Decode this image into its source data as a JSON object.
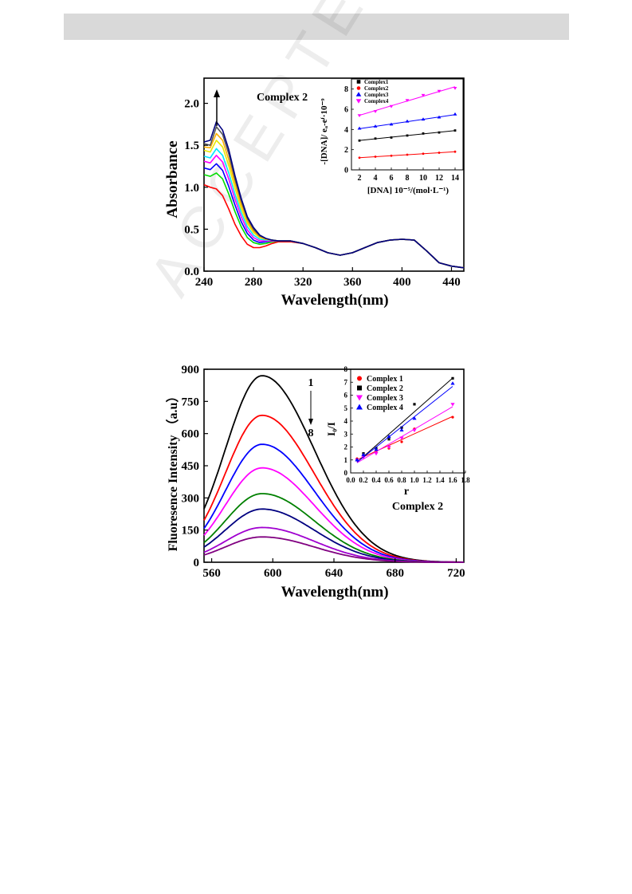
{
  "watermark_text": "ACCEPTED MANUSCRIPT",
  "chart_data": [
    {
      "type": "line",
      "panel": "top-uv-vis",
      "title": "Complex 2",
      "xlabel": "Wavelength(nm)",
      "ylabel": "Absorbance",
      "xlim": [
        240,
        450
      ],
      "ylim": [
        0.0,
        2.3
      ],
      "x_ticks": [
        "240",
        "280",
        "320",
        "360",
        "400",
        "440"
      ],
      "y_ticks": [
        "0.0",
        "0.5",
        "1.0",
        "1.5",
        "2.0"
      ],
      "grid": false,
      "arrow": "up",
      "colors": [
        "#ff0000",
        "#00dd00",
        "#0000ff",
        "#ff00ff",
        "#00e5ff",
        "#e8e800",
        "#ffb000",
        "#555555",
        "#000080"
      ],
      "curves_x": [
        240,
        245,
        250,
        255,
        260,
        265,
        270,
        275,
        280,
        285,
        290,
        295,
        300,
        310,
        320,
        330,
        340,
        350,
        360,
        370,
        380,
        390,
        400,
        410,
        420,
        430,
        440,
        450
      ],
      "series": [
        {
          "values": [
            1.03,
            1.0,
            0.98,
            0.9,
            0.74,
            0.56,
            0.42,
            0.32,
            0.28,
            0.28,
            0.3,
            0.33,
            0.35,
            0.35,
            0.33,
            0.28,
            0.22,
            0.19,
            0.22,
            0.28,
            0.34,
            0.37,
            0.38,
            0.37,
            0.24,
            0.1,
            0.06,
            0.04
          ]
        },
        {
          "values": [
            1.15,
            1.13,
            1.17,
            1.1,
            0.92,
            0.71,
            0.53,
            0.4,
            0.34,
            0.32,
            0.33,
            0.35,
            0.36,
            0.36,
            0.33,
            0.28,
            0.22,
            0.19,
            0.22,
            0.28,
            0.34,
            0.37,
            0.38,
            0.37,
            0.24,
            0.1,
            0.06,
            0.04
          ]
        },
        {
          "values": [
            1.23,
            1.21,
            1.28,
            1.2,
            1.01,
            0.79,
            0.59,
            0.45,
            0.37,
            0.34,
            0.35,
            0.36,
            0.36,
            0.36,
            0.33,
            0.28,
            0.22,
            0.19,
            0.22,
            0.28,
            0.34,
            0.37,
            0.38,
            0.37,
            0.24,
            0.1,
            0.06,
            0.04
          ]
        },
        {
          "values": [
            1.31,
            1.29,
            1.38,
            1.3,
            1.1,
            0.86,
            0.65,
            0.49,
            0.4,
            0.36,
            0.36,
            0.36,
            0.36,
            0.36,
            0.33,
            0.28,
            0.22,
            0.19,
            0.22,
            0.28,
            0.34,
            0.37,
            0.38,
            0.37,
            0.24,
            0.1,
            0.06,
            0.04
          ]
        },
        {
          "values": [
            1.37,
            1.35,
            1.46,
            1.38,
            1.17,
            0.92,
            0.7,
            0.53,
            0.43,
            0.38,
            0.37,
            0.37,
            0.36,
            0.36,
            0.33,
            0.28,
            0.22,
            0.19,
            0.22,
            0.28,
            0.34,
            0.37,
            0.38,
            0.37,
            0.24,
            0.1,
            0.06,
            0.04
          ]
        },
        {
          "values": [
            1.44,
            1.42,
            1.56,
            1.48,
            1.26,
            0.99,
            0.75,
            0.57,
            0.46,
            0.4,
            0.38,
            0.37,
            0.36,
            0.36,
            0.33,
            0.28,
            0.22,
            0.19,
            0.22,
            0.28,
            0.34,
            0.37,
            0.38,
            0.37,
            0.24,
            0.1,
            0.06,
            0.04
          ]
        },
        {
          "values": [
            1.48,
            1.47,
            1.64,
            1.56,
            1.33,
            1.05,
            0.8,
            0.6,
            0.48,
            0.41,
            0.38,
            0.37,
            0.36,
            0.36,
            0.33,
            0.28,
            0.22,
            0.19,
            0.22,
            0.28,
            0.34,
            0.37,
            0.38,
            0.37,
            0.24,
            0.1,
            0.06,
            0.04
          ]
        },
        {
          "values": [
            1.52,
            1.5,
            1.72,
            1.63,
            1.4,
            1.1,
            0.84,
            0.63,
            0.5,
            0.42,
            0.39,
            0.37,
            0.36,
            0.36,
            0.33,
            0.28,
            0.22,
            0.19,
            0.22,
            0.28,
            0.34,
            0.37,
            0.38,
            0.37,
            0.24,
            0.1,
            0.06,
            0.04
          ]
        },
        {
          "values": [
            1.54,
            1.56,
            1.78,
            1.68,
            1.45,
            1.14,
            0.87,
            0.65,
            0.52,
            0.43,
            0.39,
            0.37,
            0.36,
            0.36,
            0.33,
            0.28,
            0.22,
            0.19,
            0.22,
            0.28,
            0.34,
            0.37,
            0.38,
            0.37,
            0.24,
            0.1,
            0.06,
            0.04
          ]
        }
      ]
    },
    {
      "type": "scatter",
      "panel": "top-inset",
      "xlabel": "[DNA] 10⁻⁵/(mol·L⁻¹)",
      "ylabel": "-[DNA]/ eₐ-eᶠ·10⁻⁹",
      "xlim": [
        1,
        15
      ],
      "ylim": [
        0,
        9
      ],
      "x_ticks": [
        "2",
        "4",
        "6",
        "8",
        "10",
        "12",
        "14"
      ],
      "y_ticks": [
        "0",
        "2",
        "4",
        "6",
        "8"
      ],
      "x": [
        2,
        4,
        6,
        8,
        10,
        12,
        14
      ],
      "series": [
        {
          "name": "Complex1",
          "color": "#000000",
          "marker": "square",
          "values": [
            2.9,
            3.1,
            3.2,
            3.4,
            3.6,
            3.7,
            3.9
          ]
        },
        {
          "name": "Complex2",
          "color": "#ff0000",
          "marker": "circle",
          "values": [
            1.2,
            1.3,
            1.4,
            1.5,
            1.6,
            1.7,
            1.8
          ]
        },
        {
          "name": "Complex3",
          "color": "#0000ff",
          "marker": "triangle",
          "values": [
            4.1,
            4.3,
            4.5,
            4.8,
            5.0,
            5.2,
            5.5
          ]
        },
        {
          "name": "Complex4",
          "color": "#ff00ff",
          "marker": "triangle-down",
          "values": [
            5.4,
            5.8,
            6.3,
            6.9,
            7.4,
            7.8,
            8.1
          ]
        }
      ]
    },
    {
      "type": "line",
      "panel": "bottom-fluorescence",
      "title": "Complex 2",
      "xlabel": "Wavelength(nm)",
      "ylabel": "Fluoresence Intensity （a.u）",
      "xlim": [
        555,
        725
      ],
      "ylim": [
        0,
        900
      ],
      "x_ticks": [
        "560",
        "600",
        "640",
        "680",
        "720"
      ],
      "y_ticks": [
        "0",
        "150",
        "300",
        "450",
        "600",
        "750",
        "900"
      ],
      "grid": false,
      "arrow_top_label": "1",
      "arrow_bottom_label": "8",
      "peak_x": 593,
      "colors": [
        "#000000",
        "#ff0000",
        "#0000ff",
        "#ff00ff",
        "#008000",
        "#000080",
        "#a000d0",
        "#800080"
      ],
      "peaks": [
        870,
        685,
        550,
        440,
        320,
        248,
        162,
        118
      ]
    },
    {
      "type": "scatter",
      "panel": "bottom-inset",
      "xlabel": "r",
      "ylabel": "I₀/I",
      "xlim": [
        0.0,
        1.8
      ],
      "ylim": [
        0,
        8
      ],
      "x_ticks": [
        "0.0",
        "0.2",
        "0.4",
        "0.6",
        "0.8",
        "1.0",
        "1.2",
        "1.4",
        "1.6",
        "1.8"
      ],
      "y_ticks": [
        "0",
        "1",
        "2",
        "3",
        "4",
        "5",
        "6",
        "7",
        "8"
      ],
      "x": [
        0.1,
        0.2,
        0.4,
        0.6,
        0.8,
        1.0,
        1.6
      ],
      "series": [
        {
          "name": "Complex 1",
          "color": "#ff0000",
          "marker": "circle",
          "values": [
            1.1,
            1.3,
            1.6,
            1.9,
            2.4,
            3.4,
            4.3
          ]
        },
        {
          "name": "Complex 2",
          "color": "#000000",
          "marker": "square",
          "values": [
            1.0,
            1.5,
            1.9,
            2.6,
            3.5,
            5.3,
            7.3
          ]
        },
        {
          "name": "Complex 3",
          "color": "#ff00ff",
          "marker": "triangle-down",
          "values": [
            1.0,
            1.2,
            1.5,
            2.0,
            2.7,
            3.3,
            5.3
          ]
        },
        {
          "name": "Complex 4",
          "color": "#0000ff",
          "marker": "triangle",
          "values": [
            1.0,
            1.4,
            1.8,
            2.8,
            3.3,
            4.2,
            6.9
          ]
        }
      ]
    }
  ]
}
